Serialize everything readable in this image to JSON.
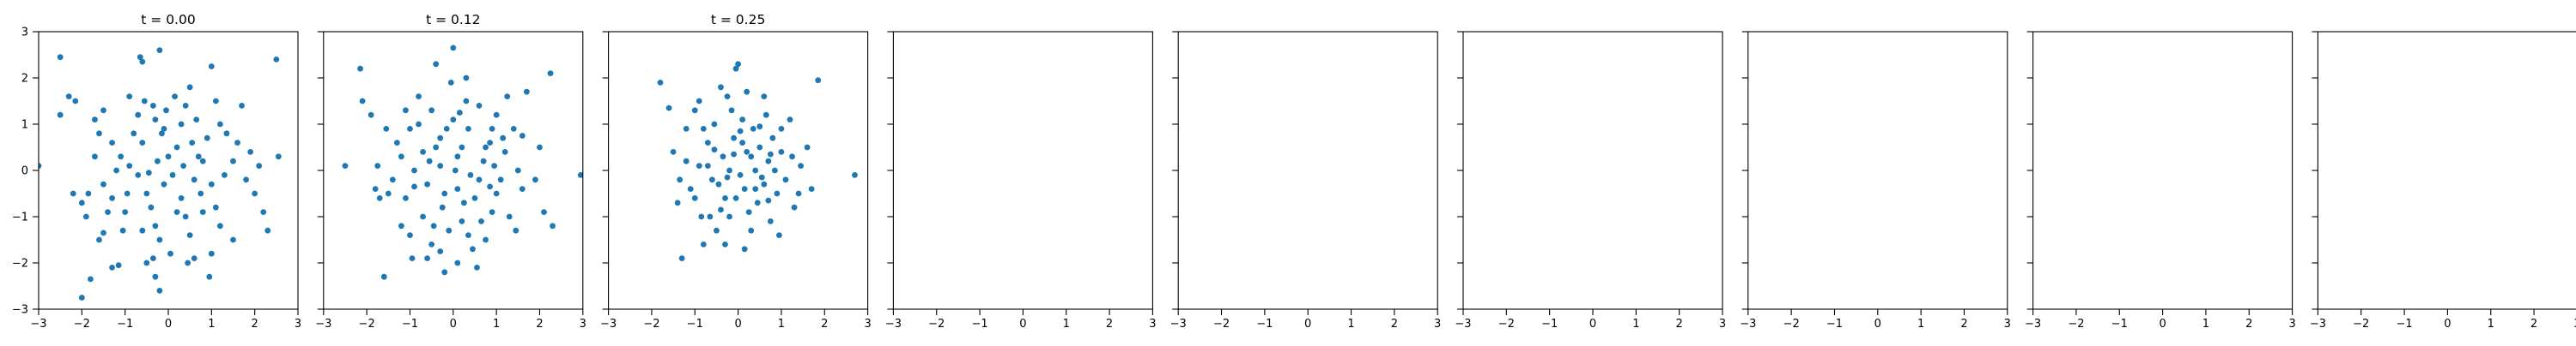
{
  "chart_data": [
    {
      "type": "scatter",
      "title": "t = 0.00",
      "xlim": [
        -3,
        3
      ],
      "ylim": [
        -3,
        3
      ],
      "xticks": [
        "−3",
        "−2",
        "−1",
        "0",
        "1",
        "2",
        "3"
      ],
      "yticks": [
        "−3",
        "−2",
        "−1",
        "0",
        "1",
        "2",
        "3"
      ],
      "grid": false,
      "points": [
        [
          -3.0,
          0.1
        ],
        [
          -2.5,
          2.45
        ],
        [
          -2.5,
          1.2
        ],
        [
          -2.3,
          1.6
        ],
        [
          -2.15,
          1.5
        ],
        [
          -2.2,
          -0.5
        ],
        [
          -2.0,
          -0.7
        ],
        [
          -1.85,
          -0.5
        ],
        [
          -1.6,
          -1.5
        ],
        [
          -1.5,
          -1.35
        ],
        [
          -2.0,
          -2.75
        ],
        [
          -1.8,
          -2.35
        ],
        [
          -1.3,
          -2.1
        ],
        [
          -1.15,
          -2.05
        ],
        [
          -1.7,
          1.1
        ],
        [
          -1.6,
          0.8
        ],
        [
          -1.5,
          1.3
        ],
        [
          -1.3,
          0.6
        ],
        [
          -1.1,
          0.3
        ],
        [
          -0.9,
          0.1
        ],
        [
          -1.5,
          -0.3
        ],
        [
          -1.3,
          -0.6
        ],
        [
          -1.0,
          -0.9
        ],
        [
          -0.95,
          -0.5
        ],
        [
          -0.7,
          -0.1
        ],
        [
          -0.6,
          0.6
        ],
        [
          -0.7,
          1.2
        ],
        [
          -0.55,
          1.5
        ],
        [
          -0.65,
          2.45
        ],
        [
          -0.6,
          2.35
        ],
        [
          -0.35,
          1.4
        ],
        [
          -0.2,
          2.6
        ],
        [
          -0.3,
          1.1
        ],
        [
          -0.15,
          0.8
        ],
        [
          -0.5,
          -0.5
        ],
        [
          -0.4,
          -0.8
        ],
        [
          -0.3,
          -1.2
        ],
        [
          -0.2,
          -1.5
        ],
        [
          -0.35,
          -1.9
        ],
        [
          -0.5,
          -2.0
        ],
        [
          -0.3,
          -2.3
        ],
        [
          -0.2,
          -2.6
        ],
        [
          -0.1,
          -0.3
        ],
        [
          0.0,
          0.3
        ],
        [
          0.1,
          -0.1
        ],
        [
          0.2,
          0.5
        ],
        [
          0.3,
          1.0
        ],
        [
          0.4,
          1.4
        ],
        [
          0.5,
          1.8
        ],
        [
          0.55,
          0.6
        ],
        [
          0.6,
          -0.2
        ],
        [
          0.7,
          0.3
        ],
        [
          0.3,
          -0.6
        ],
        [
          0.4,
          -1.0
        ],
        [
          0.5,
          -1.4
        ],
        [
          0.6,
          -1.9
        ],
        [
          0.45,
          -2.0
        ],
        [
          0.8,
          0.2
        ],
        [
          0.9,
          0.7
        ],
        [
          1.0,
          2.25
        ],
        [
          1.1,
          1.5
        ],
        [
          1.2,
          1.0
        ],
        [
          1.0,
          -0.3
        ],
        [
          1.1,
          -0.8
        ],
        [
          1.2,
          -1.2
        ],
        [
          1.0,
          -1.8
        ],
        [
          1.5,
          0.2
        ],
        [
          1.7,
          1.4
        ],
        [
          1.8,
          -0.2
        ],
        [
          1.9,
          0.4
        ],
        [
          2.0,
          -0.5
        ],
        [
          2.1,
          0.1
        ],
        [
          2.2,
          -0.9
        ],
        [
          2.5,
          2.4
        ],
        [
          2.55,
          0.3
        ],
        [
          1.5,
          -1.5
        ],
        [
          1.3,
          -0.1
        ],
        [
          0.8,
          -0.9
        ],
        [
          -0.8,
          0.8
        ],
        [
          -1.2,
          0.0
        ],
        [
          -1.9,
          -1.0
        ],
        [
          -1.4,
          -0.9
        ],
        [
          -0.1,
          0.9
        ],
        [
          0.2,
          -0.9
        ],
        [
          -0.6,
          -1.3
        ],
        [
          0.95,
          -2.3
        ],
        [
          0.15,
          1.6
        ],
        [
          -0.25,
          0.2
        ],
        [
          0.35,
          0.1
        ],
        [
          -0.45,
          -0.05
        ],
        [
          0.75,
          -0.5
        ],
        [
          1.6,
          0.6
        ],
        [
          -1.7,
          0.3
        ],
        [
          -0.9,
          1.6
        ],
        [
          0.05,
          -1.8
        ],
        [
          -1.05,
          -1.3
        ],
        [
          0.65,
          1.1
        ],
        [
          1.35,
          0.8
        ],
        [
          -0.05,
          1.3
        ],
        [
          2.3,
          -1.3
        ]
      ]
    },
    {
      "type": "scatter",
      "title": "t = 0.12",
      "xlim": [
        -3,
        3
      ],
      "ylim": [
        -3,
        3
      ],
      "xticks": [
        "−3",
        "−2",
        "−1",
        "0",
        "1",
        "2",
        "3"
      ],
      "yticks": [],
      "grid": false,
      "points": [
        [
          -2.5,
          0.1
        ],
        [
          -2.15,
          2.2
        ],
        [
          -2.1,
          1.5
        ],
        [
          -1.9,
          1.2
        ],
        [
          -1.8,
          -0.4
        ],
        [
          -1.7,
          -0.6
        ],
        [
          -1.6,
          -2.3
        ],
        [
          -1.5,
          -0.5
        ],
        [
          -1.2,
          -1.2
        ],
        [
          -1.3,
          0.6
        ],
        [
          -1.1,
          1.3
        ],
        [
          -1.0,
          0.9
        ],
        [
          -1.0,
          -1.4
        ],
        [
          -0.95,
          -1.9
        ],
        [
          -0.8,
          1.0
        ],
        [
          -0.7,
          0.4
        ],
        [
          -0.6,
          -0.3
        ],
        [
          -0.5,
          1.3
        ],
        [
          -0.5,
          -1.6
        ],
        [
          -0.4,
          2.3
        ],
        [
          -0.3,
          0.7
        ],
        [
          -0.25,
          -0.8
        ],
        [
          -0.2,
          -2.2
        ],
        [
          0.0,
          2.65
        ],
        [
          0.0,
          1.1
        ],
        [
          0.1,
          0.3
        ],
        [
          0.1,
          -0.4
        ],
        [
          0.2,
          -1.1
        ],
        [
          0.3,
          2.0
        ],
        [
          0.35,
          0.9
        ],
        [
          0.4,
          -0.1
        ],
        [
          0.5,
          -0.6
        ],
        [
          0.6,
          1.4
        ],
        [
          0.7,
          0.2
        ],
        [
          0.75,
          -1.5
        ],
        [
          0.85,
          0.6
        ],
        [
          0.9,
          -0.9
        ],
        [
          1.0,
          1.2
        ],
        [
          1.1,
          -0.2
        ],
        [
          1.2,
          0.4
        ],
        [
          1.3,
          -1.0
        ],
        [
          1.4,
          0.9
        ],
        [
          1.5,
          0.0
        ],
        [
          1.6,
          -0.4
        ],
        [
          1.7,
          1.7
        ],
        [
          1.9,
          -0.2
        ],
        [
          2.0,
          0.5
        ],
        [
          2.1,
          -0.9
        ],
        [
          2.25,
          2.1
        ],
        [
          2.3,
          -1.2
        ],
        [
          2.95,
          -0.1
        ],
        [
          -1.4,
          -0.2
        ],
        [
          -0.9,
          0.0
        ],
        [
          -0.3,
          0.1
        ],
        [
          0.2,
          0.5
        ],
        [
          0.6,
          -0.2
        ],
        [
          -0.7,
          -1.0
        ],
        [
          -0.1,
          -1.3
        ],
        [
          0.45,
          -1.7
        ],
        [
          0.9,
          0.9
        ],
        [
          -1.2,
          0.3
        ],
        [
          -0.4,
          0.5
        ],
        [
          0.3,
          1.5
        ],
        [
          1.0,
          -0.5
        ],
        [
          -0.6,
          -1.9
        ],
        [
          0.1,
          -2.0
        ],
        [
          -0.8,
          1.6
        ],
        [
          0.55,
          -2.1
        ],
        [
          1.25,
          1.6
        ],
        [
          -1.55,
          0.9
        ],
        [
          -0.2,
          -0.5
        ],
        [
          0.75,
          0.5
        ],
        [
          -0.05,
          1.9
        ],
        [
          0.25,
          -0.7
        ],
        [
          1.45,
          -1.3
        ],
        [
          -1.1,
          -0.6
        ],
        [
          0.65,
          -1.1
        ],
        [
          -0.45,
          -1.2
        ],
        [
          -0.15,
          0.9
        ],
        [
          0.95,
          0.1
        ],
        [
          -1.75,
          0.1
        ],
        [
          0.35,
          -1.4
        ],
        [
          1.15,
          0.7
        ],
        [
          -0.55,
          0.2
        ],
        [
          0.15,
          1.25
        ],
        [
          -0.9,
          -0.35
        ],
        [
          0.85,
          -0.35
        ],
        [
          1.6,
          0.75
        ],
        [
          -0.3,
          -1.75
        ],
        [
          0.05,
          0.0
        ]
      ]
    },
    {
      "type": "scatter",
      "title": "t = 0.25",
      "xlim": [
        -3,
        3
      ],
      "ylim": [
        -3,
        3
      ],
      "xticks": [
        "−3",
        "−2",
        "−1",
        "0",
        "1",
        "2",
        "3"
      ],
      "yticks": [],
      "grid": false,
      "points": [
        [
          -1.8,
          1.9
        ],
        [
          -1.6,
          1.35
        ],
        [
          -1.5,
          0.4
        ],
        [
          -1.4,
          -0.7
        ],
        [
          -1.3,
          -1.9
        ],
        [
          -1.2,
          0.9
        ],
        [
          -1.1,
          -0.4
        ],
        [
          -1.0,
          1.3
        ],
        [
          -0.9,
          0.1
        ],
        [
          -0.85,
          -1.0
        ],
        [
          -0.8,
          -1.6
        ],
        [
          -0.7,
          0.6
        ],
        [
          -0.6,
          -0.2
        ],
        [
          -0.55,
          1.0
        ],
        [
          -0.5,
          -1.3
        ],
        [
          -0.4,
          1.8
        ],
        [
          -0.35,
          0.3
        ],
        [
          -0.3,
          -0.6
        ],
        [
          -0.25,
          1.6
        ],
        [
          -0.2,
          -1.0
        ],
        [
          -0.1,
          0.7
        ],
        [
          -0.05,
          2.2
        ],
        [
          0.0,
          2.3
        ],
        [
          0.05,
          -0.1
        ],
        [
          0.1,
          1.1
        ],
        [
          0.15,
          -0.4
        ],
        [
          0.2,
          0.4
        ],
        [
          0.3,
          -1.3
        ],
        [
          0.35,
          0.9
        ],
        [
          0.4,
          0.0
        ],
        [
          0.45,
          -0.7
        ],
        [
          0.5,
          0.5
        ],
        [
          0.6,
          -0.3
        ],
        [
          0.65,
          1.2
        ],
        [
          0.7,
          0.2
        ],
        [
          0.75,
          -1.1
        ],
        [
          0.8,
          0.7
        ],
        [
          0.9,
          -0.5
        ],
        [
          1.0,
          0.4
        ],
        [
          1.1,
          -0.2
        ],
        [
          1.2,
          1.1
        ],
        [
          1.3,
          -0.8
        ],
        [
          1.45,
          0.1
        ],
        [
          1.6,
          0.5
        ],
        [
          1.7,
          -0.4
        ],
        [
          1.85,
          1.95
        ],
        [
          2.7,
          -0.1
        ],
        [
          -1.0,
          -0.6
        ],
        [
          -0.7,
          0.1
        ],
        [
          -0.2,
          0.0
        ],
        [
          0.3,
          0.3
        ],
        [
          0.55,
          -0.15
        ],
        [
          0.1,
          0.6
        ],
        [
          -0.45,
          -0.3
        ],
        [
          0.85,
          0.0
        ],
        [
          -0.15,
          1.3
        ],
        [
          0.25,
          -0.9
        ],
        [
          -0.65,
          -1.0
        ],
        [
          1.0,
          0.9
        ],
        [
          -1.2,
          0.2
        ],
        [
          0.6,
          1.6
        ],
        [
          -0.3,
          -1.6
        ],
        [
          0.15,
          -1.7
        ],
        [
          1.25,
          0.3
        ],
        [
          -0.8,
          0.9
        ],
        [
          0.4,
          -0.4
        ],
        [
          -0.05,
          -0.6
        ],
        [
          0.7,
          -0.65
        ],
        [
          -0.55,
          0.45
        ],
        [
          0.95,
          -1.4
        ],
        [
          -1.35,
          -0.2
        ],
        [
          0.2,
          1.7
        ],
        [
          -0.9,
          1.5
        ],
        [
          1.4,
          -0.5
        ],
        [
          -0.1,
          0.35
        ],
        [
          0.5,
          0.95
        ],
        [
          -0.4,
          -0.85
        ],
        [
          0.75,
          0.35
        ],
        [
          -0.25,
          -0.15
        ],
        [
          0.05,
          0.85
        ]
      ]
    },
    {
      "type": "scatter",
      "title": "",
      "xlim": [
        -3,
        3
      ],
      "ylim": [
        -3,
        3
      ],
      "xticks": [
        "−3",
        "−2",
        "−1",
        "0",
        "1",
        "2",
        "3"
      ],
      "yticks": [],
      "grid": false,
      "points": []
    },
    {
      "type": "scatter",
      "title": "",
      "xlim": [
        -3,
        3
      ],
      "ylim": [
        -3,
        3
      ],
      "xticks": [
        "−3",
        "−2",
        "−1",
        "0",
        "1",
        "2",
        "3"
      ],
      "yticks": [],
      "grid": false,
      "points": []
    },
    {
      "type": "scatter",
      "title": "",
      "xlim": [
        -3,
        3
      ],
      "ylim": [
        -3,
        3
      ],
      "xticks": [
        "−3",
        "−2",
        "−1",
        "0",
        "1",
        "2",
        "3"
      ],
      "yticks": [],
      "grid": false,
      "points": []
    },
    {
      "type": "scatter",
      "title": "",
      "xlim": [
        -3,
        3
      ],
      "ylim": [
        -3,
        3
      ],
      "xticks": [
        "−3",
        "−2",
        "−1",
        "0",
        "1",
        "2",
        "3"
      ],
      "yticks": [],
      "grid": false,
      "points": []
    },
    {
      "type": "scatter",
      "title": "",
      "xlim": [
        -3,
        3
      ],
      "ylim": [
        -3,
        3
      ],
      "xticks": [
        "−3",
        "−2",
        "−1",
        "0",
        "1",
        "2",
        "3"
      ],
      "yticks": [],
      "grid": false,
      "points": []
    },
    {
      "type": "scatter",
      "title": "",
      "xlim": [
        -3,
        3
      ],
      "ylim": [
        -3,
        3
      ],
      "xticks": [
        "−3",
        "−2",
        "−1",
        "0",
        "1",
        "2",
        "3"
      ],
      "yticks": [],
      "grid": false,
      "points": []
    }
  ],
  "colors": {
    "marker": "#1f77b4",
    "axes": "#000000",
    "text": "#000000",
    "background": "#ffffff"
  }
}
